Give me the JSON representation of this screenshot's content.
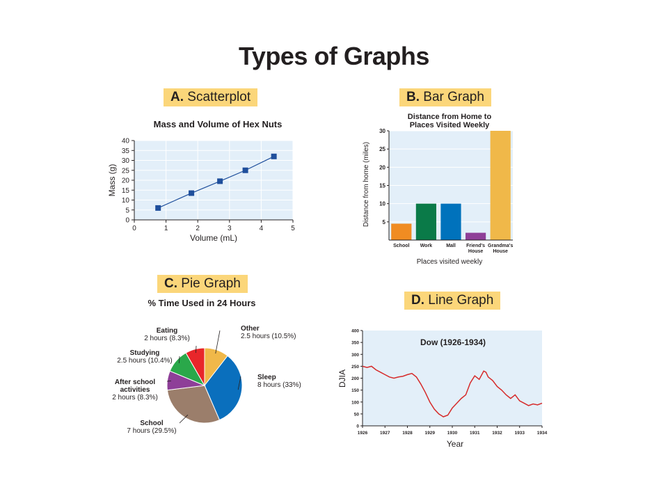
{
  "page": {
    "title": "Types of Graphs"
  },
  "sections": {
    "a": {
      "letter": "A.",
      "label": "Scatterplot"
    },
    "b": {
      "letter": "B.",
      "label": "Bar Graph"
    },
    "c": {
      "letter": "C.",
      "label": "Pie Graph"
    },
    "d": {
      "letter": "D.",
      "label": "Line Graph"
    }
  },
  "colors": {
    "panel_bg": "#e3eff9",
    "label_bg": "#fbd67a",
    "scatter_marker": "#1f4f9c",
    "line_series": "#d62a2a"
  },
  "chart_data": [
    {
      "type": "scatter",
      "title": "Mass and Volume of Hex Nuts",
      "xlabel": "Volume (mL)",
      "ylabel": "Mass (g)",
      "xlim": [
        0,
        5
      ],
      "ylim": [
        0,
        40
      ],
      "xticks": [
        0,
        1,
        2,
        3,
        4,
        5
      ],
      "yticks": [
        0,
        5,
        10,
        15,
        20,
        25,
        30,
        35,
        40
      ],
      "grid": true,
      "trendline": true,
      "x": [
        0.75,
        1.8,
        2.7,
        3.5,
        4.4
      ],
      "y": [
        6,
        13.5,
        19.5,
        25,
        32
      ]
    },
    {
      "type": "bar",
      "title_lines": [
        "Distance from Home to",
        "Places Visited Weekly"
      ],
      "xlabel": "Places visited weekly",
      "ylabel": "Distance from home (miles)",
      "ylim": [
        0,
        30
      ],
      "yticks": [
        5,
        10,
        15,
        20,
        25,
        30
      ],
      "grid": true,
      "categories": [
        [
          "School"
        ],
        [
          "Work"
        ],
        [
          "Mall"
        ],
        [
          "Friend's",
          "House"
        ],
        [
          "Grandma's",
          "House"
        ]
      ],
      "values": [
        4.5,
        10,
        10,
        2,
        30
      ],
      "bar_colors": [
        "#f08c22",
        "#0a7a48",
        "#0072bc",
        "#8e3f98",
        "#f0b849"
      ]
    },
    {
      "type": "pie",
      "title": "% Time Used in 24 Hours",
      "slices": [
        {
          "name": "Other",
          "detail": "2.5 hours (10.5%)",
          "value": 10.5,
          "color": "#f0b849"
        },
        {
          "name": "Sleep",
          "detail": "8 hours (33%)",
          "value": 33,
          "color": "#0a6fbd"
        },
        {
          "name": "School",
          "detail": "7 hours (29.5%)",
          "value": 29.5,
          "color": "#9b7e6b"
        },
        {
          "name_lines": [
            "After school",
            "activities"
          ],
          "detail": "2 hours (8.3%)",
          "value": 8.3,
          "color": "#8e3f98"
        },
        {
          "name": "Studying",
          "detail": "2.5 hours (10.4%)",
          "value": 10.4,
          "color": "#2aa84a"
        },
        {
          "name": "Eating",
          "detail": "2 hours (8.3%)",
          "value": 8.3,
          "color": "#e8262a"
        }
      ]
    },
    {
      "type": "line",
      "title": "Dow (1926-1934)",
      "xlabel": "Year",
      "ylabel": "DJIA",
      "xlim": [
        1926,
        1934
      ],
      "ylim": [
        0,
        400
      ],
      "xticks": [
        1926,
        1927,
        1928,
        1929,
        1930,
        1931,
        1932,
        1933,
        1934
      ],
      "yticks": [
        0,
        50,
        100,
        150,
        200,
        250,
        300,
        350,
        400
      ],
      "series": [
        {
          "x": [
            1926,
            1926.2,
            1926.4,
            1926.6,
            1926.8,
            1927,
            1927.2,
            1927.4,
            1927.6,
            1927.8,
            1928,
            1928.2,
            1928.4,
            1928.6,
            1928.8,
            1929,
            1929.2,
            1929.4,
            1929.6,
            1929.8,
            1930,
            1930.2,
            1930.4,
            1930.6,
            1930.8,
            1931,
            1931.2,
            1931.4,
            1931.5,
            1931.6,
            1931.8,
            1932,
            1932.2,
            1932.4,
            1932.6,
            1932.8,
            1933,
            1933.2,
            1933.4,
            1933.6,
            1933.8,
            1934
          ],
          "y": [
            250,
            245,
            250,
            235,
            225,
            215,
            205,
            200,
            205,
            208,
            215,
            220,
            205,
            175,
            140,
            100,
            70,
            50,
            38,
            45,
            75,
            95,
            115,
            130,
            180,
            210,
            195,
            230,
            225,
            205,
            190,
            165,
            150,
            130,
            115,
            130,
            105,
            95,
            85,
            92,
            88,
            95
          ]
        }
      ]
    }
  ]
}
